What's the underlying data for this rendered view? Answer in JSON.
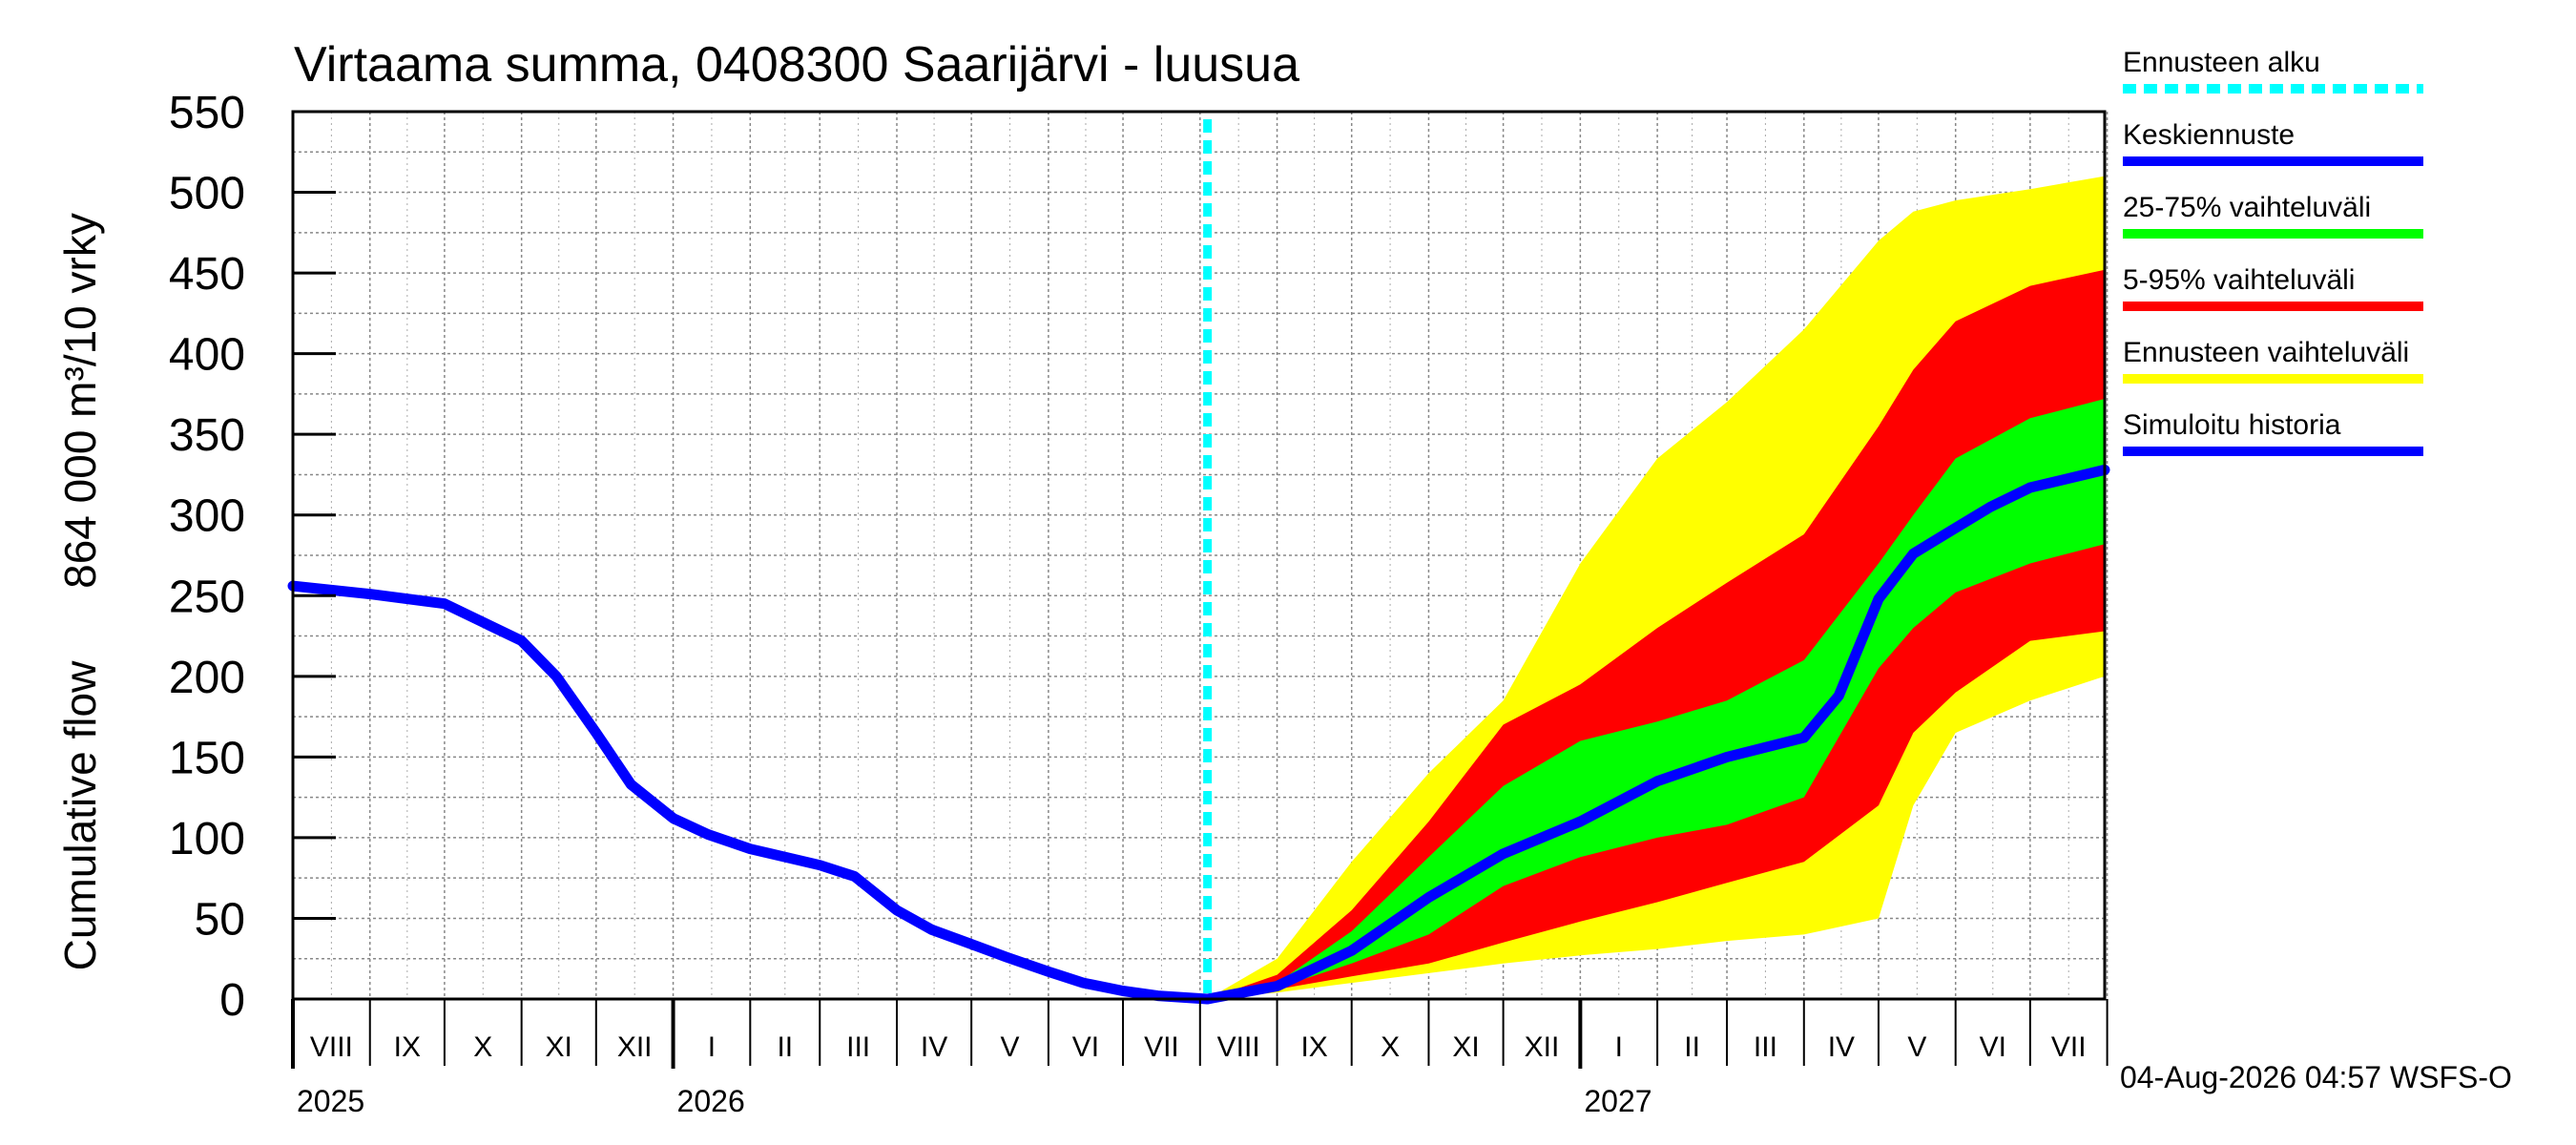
{
  "chart_data": {
    "type": "area",
    "title": "Virtaama summa, 0408300 Saarijärvi - luusua",
    "ylabel_top": "864 000 m³/10 vrky",
    "ylabel_bottom": "Cumulative flow",
    "ylim": [
      0,
      550
    ],
    "yticks": [
      0,
      50,
      100,
      150,
      200,
      250,
      300,
      350,
      400,
      450,
      500,
      550
    ],
    "x_start": "2025-08-01",
    "x_end": "2027-07-31",
    "forecast_start": "2026-08-04",
    "grid": true,
    "legend_position": "right",
    "month_labels": [
      "VIII",
      "IX",
      "X",
      "XI",
      "XII",
      "I",
      "II",
      "III",
      "IV",
      "V",
      "VI",
      "VII",
      "VIII",
      "IX",
      "X",
      "XI",
      "XII",
      "I",
      "II",
      "III",
      "IV",
      "V",
      "VI",
      "VII"
    ],
    "year_labels": [
      "2025",
      "2026",
      "2027"
    ],
    "series": [
      {
        "name": "Simuloitu historia",
        "color": "#0000ff",
        "x": [
          "2025-08-01",
          "2025-09-01",
          "2025-10-01",
          "2025-11-01",
          "2025-11-15",
          "2025-12-01",
          "2025-12-15",
          "2026-01-01",
          "2026-01-15",
          "2026-02-01",
          "2026-02-15",
          "2026-03-01",
          "2026-03-15",
          "2026-04-01",
          "2026-04-15",
          "2026-05-01",
          "2026-05-15",
          "2026-06-01",
          "2026-06-15",
          "2026-07-01",
          "2026-07-15",
          "2026-08-04"
        ],
        "y": [
          256,
          251,
          245,
          222,
          200,
          165,
          133,
          112,
          102,
          93,
          88,
          83,
          76,
          55,
          43,
          34,
          26,
          17,
          10,
          5,
          2,
          0
        ]
      },
      {
        "name": "Keskiennuste",
        "color": "#0000ff",
        "x": [
          "2026-08-04",
          "2026-09-01",
          "2026-10-01",
          "2026-11-01",
          "2026-12-01",
          "2027-01-01",
          "2027-02-01",
          "2027-03-01",
          "2027-04-01",
          "2027-04-15",
          "2027-05-01",
          "2027-05-15",
          "2027-06-01",
          "2027-06-15",
          "2027-07-01",
          "2027-07-31"
        ],
        "y": [
          0,
          8,
          30,
          63,
          90,
          110,
          135,
          150,
          162,
          188,
          248,
          276,
          292,
          305,
          317,
          328
        ]
      }
    ],
    "bands": [
      {
        "name": "Ennusteen vaihteluväli",
        "color": "#ffff00",
        "x": [
          "2026-08-04",
          "2026-09-01",
          "2026-10-01",
          "2026-11-01",
          "2026-12-01",
          "2027-01-01",
          "2027-02-01",
          "2027-03-01",
          "2027-04-01",
          "2027-05-01",
          "2027-05-15",
          "2027-06-01",
          "2027-07-01",
          "2027-07-31"
        ],
        "low": [
          0,
          4,
          10,
          16,
          22,
          27,
          31,
          36,
          40,
          50,
          120,
          165,
          185,
          200
        ],
        "high": [
          0,
          25,
          85,
          140,
          185,
          270,
          335,
          370,
          415,
          470,
          488,
          495,
          502,
          510
        ]
      },
      {
        "name": "5-95% vaihteluväli",
        "color": "#ff0000",
        "x": [
          "2026-08-04",
          "2026-09-01",
          "2026-10-01",
          "2026-11-01",
          "2026-12-01",
          "2027-01-01",
          "2027-02-01",
          "2027-03-01",
          "2027-04-01",
          "2027-05-01",
          "2027-05-15",
          "2027-06-01",
          "2027-07-01",
          "2027-07-31"
        ],
        "low": [
          0,
          6,
          14,
          22,
          35,
          48,
          60,
          72,
          85,
          120,
          165,
          190,
          222,
          228
        ],
        "high": [
          0,
          15,
          55,
          110,
          170,
          195,
          230,
          258,
          288,
          355,
          390,
          420,
          442,
          452
        ]
      },
      {
        "name": "25-75% vaihteluväli",
        "color": "#00ff00",
        "x": [
          "2026-08-04",
          "2026-09-01",
          "2026-10-01",
          "2026-11-01",
          "2026-12-01",
          "2027-01-01",
          "2027-02-01",
          "2027-03-01",
          "2027-04-01",
          "2027-05-01",
          "2027-05-15",
          "2027-06-01",
          "2027-07-01",
          "2027-07-31"
        ],
        "low": [
          0,
          7,
          22,
          40,
          70,
          88,
          100,
          108,
          125,
          205,
          230,
          252,
          270,
          282
        ],
        "high": [
          0,
          10,
          42,
          88,
          132,
          160,
          172,
          185,
          210,
          270,
          300,
          335,
          360,
          372
        ]
      }
    ],
    "legend": [
      {
        "label": "Ennusteen alku",
        "color": "#00ffff",
        "dashed": true
      },
      {
        "label": "Keskiennuste",
        "color": "#0000ff",
        "dashed": false
      },
      {
        "label": "25-75% vaihteluväli",
        "color": "#00ff00",
        "dashed": false
      },
      {
        "label": "5-95% vaihteluväli",
        "color": "#ff0000",
        "dashed": false
      },
      {
        "label": "Ennusteen vaihteluväli",
        "color": "#ffff00",
        "dashed": false
      },
      {
        "label": "Simuloitu historia",
        "color": "#0000ff",
        "dashed": false
      }
    ],
    "footer": "04-Aug-2026 04:57 WSFS-O"
  }
}
